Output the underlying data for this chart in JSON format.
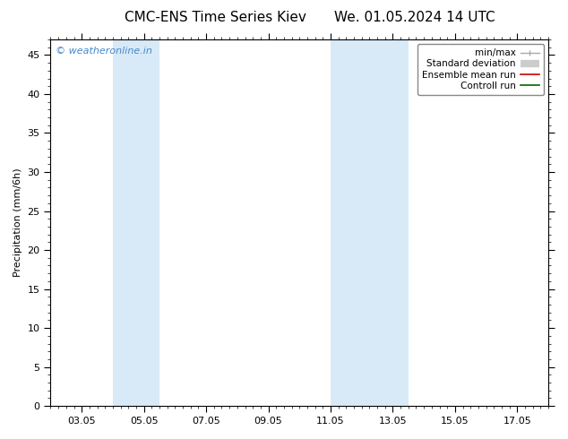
{
  "title_left": "CMC-ENS Time Series Kiev",
  "title_right": "We. 01.05.2024 14 UTC",
  "ylabel": "Precipitation (mm/6h)",
  "ylim": [
    0,
    47
  ],
  "yticks": [
    0,
    5,
    10,
    15,
    20,
    25,
    30,
    35,
    40,
    45
  ],
  "xtick_labels": [
    "03.05",
    "05.05",
    "07.05",
    "09.05",
    "11.05",
    "13.05",
    "15.05",
    "17.05"
  ],
  "xtick_positions": [
    1.0,
    3.0,
    5.0,
    7.0,
    9.0,
    11.0,
    13.0,
    15.0
  ],
  "xlim": [
    0,
    16
  ],
  "shaded_bands": [
    {
      "x_start": 2.0,
      "x_end": 3.5,
      "color": "#d8eaf7"
    },
    {
      "x_start": 9.0,
      "x_end": 11.5,
      "color": "#d8eaf7"
    }
  ],
  "watermark": "© weatheronline.in",
  "watermark_color": "#4488cc",
  "background_color": "#ffffff",
  "legend_entries": [
    {
      "label": "min/max",
      "color": "#aaaaaa",
      "lw": 1.2,
      "style": "minmax"
    },
    {
      "label": "Standard deviation",
      "color": "#cccccc",
      "lw": 6,
      "style": "fill"
    },
    {
      "label": "Ensemble mean run",
      "color": "#cc0000",
      "lw": 1.2,
      "style": "line"
    },
    {
      "label": "Controll run",
      "color": "#006600",
      "lw": 1.2,
      "style": "line"
    }
  ],
  "title_fontsize": 11,
  "axis_fontsize": 8,
  "tick_fontsize": 8,
  "legend_fontsize": 7.5
}
